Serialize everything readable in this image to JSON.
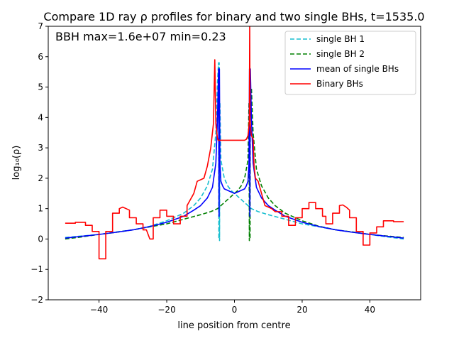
{
  "chart_data": {
    "type": "line",
    "title": "Compare 1D ray ρ profiles for binary and two single BHs, t=1535.0",
    "xlabel": "line position from centre",
    "ylabel": "log₁₀(ρ)",
    "xlim": [
      -55,
      55
    ],
    "ylim": [
      -2,
      7
    ],
    "xticks": [
      -40,
      -20,
      0,
      20,
      40
    ],
    "xtick_labels": [
      "−40",
      "−20",
      "0",
      "20",
      "40"
    ],
    "yticks": [
      -2,
      -1,
      0,
      1,
      2,
      3,
      4,
      5,
      6,
      7
    ],
    "ytick_labels": [
      "−2",
      "−1",
      "0",
      "1",
      "2",
      "3",
      "4",
      "5",
      "6",
      "7"
    ],
    "annotation": "BBH max=1.6e+07 min=0.23",
    "legend_position": "top-right",
    "grid": false,
    "series": [
      {
        "name": "single BH 1",
        "color": "#17becf",
        "style": "dashed",
        "x": [
          -50,
          -45,
          -40,
          -35,
          -30,
          -25,
          -20,
          -15,
          -12,
          -10,
          -8,
          -6.5,
          -5.5,
          -5.0,
          -4.7,
          -4.6,
          -4.5,
          -4.4,
          -4.3,
          -4.0,
          -3.5,
          -3.0,
          -2,
          -1,
          0,
          1,
          2,
          3,
          4,
          5,
          7,
          10,
          15,
          20,
          25,
          30,
          35,
          40,
          45,
          50
        ],
        "y": [
          0.05,
          0.1,
          0.15,
          0.23,
          0.3,
          0.42,
          0.6,
          0.85,
          1.1,
          1.35,
          1.75,
          2.3,
          3.5,
          5.2,
          5.8,
          0.0,
          5.8,
          -0.05,
          4.5,
          2.6,
          2.3,
          2.0,
          1.75,
          1.6,
          1.5,
          1.4,
          1.3,
          1.2,
          1.1,
          1.0,
          0.9,
          0.8,
          0.65,
          0.5,
          0.4,
          0.3,
          0.22,
          0.15,
          0.07,
          0.0
        ]
      },
      {
        "name": "single BH 2",
        "color": "#008000",
        "style": "dashed",
        "x": [
          -50,
          -45,
          -40,
          -35,
          -30,
          -25,
          -20,
          -15,
          -10,
          -7,
          -5,
          -4,
          -3,
          -2,
          -1,
          0,
          1,
          2,
          3,
          3.5,
          4.0,
          4.3,
          4.4,
          4.5,
          4.6,
          4.7,
          5.0,
          5.5,
          6.5,
          8,
          10,
          12,
          15,
          20,
          25,
          30,
          35,
          40,
          45,
          50
        ],
        "y": [
          0.0,
          0.07,
          0.15,
          0.22,
          0.3,
          0.4,
          0.5,
          0.65,
          0.8,
          0.9,
          1.0,
          1.1,
          1.2,
          1.3,
          1.4,
          1.5,
          1.6,
          1.75,
          2.0,
          2.3,
          2.6,
          4.5,
          -0.05,
          5.8,
          0.0,
          5.0,
          5.0,
          3.5,
          2.3,
          1.75,
          1.35,
          1.1,
          0.85,
          0.6,
          0.42,
          0.3,
          0.23,
          0.15,
          0.1,
          0.05
        ]
      },
      {
        "name": "mean of single BHs",
        "color": "#0000ff",
        "style": "solid",
        "x": [
          -50,
          -45,
          -40,
          -35,
          -30,
          -25,
          -20,
          -15,
          -12,
          -10,
          -8,
          -6.5,
          -5.5,
          -5.0,
          -4.7,
          -4.55,
          -4.45,
          -4.3,
          -4.0,
          -3.5,
          -3.0,
          -2,
          -1,
          0,
          1,
          2,
          3,
          3.5,
          4.0,
          4.3,
          4.45,
          4.55,
          4.7,
          5.0,
          5.5,
          6.5,
          8,
          10,
          12,
          15,
          20,
          25,
          30,
          35,
          40,
          45,
          50
        ],
        "y": [
          0.03,
          0.09,
          0.15,
          0.22,
          0.3,
          0.41,
          0.55,
          0.75,
          0.95,
          1.1,
          1.35,
          1.7,
          2.5,
          4.0,
          5.6,
          0.75,
          5.6,
          2.5,
          1.9,
          1.75,
          1.65,
          1.6,
          1.55,
          1.5,
          1.55,
          1.6,
          1.65,
          1.75,
          1.9,
          2.5,
          5.6,
          0.75,
          5.6,
          4.0,
          2.5,
          1.7,
          1.35,
          1.1,
          0.95,
          0.75,
          0.55,
          0.41,
          0.3,
          0.22,
          0.15,
          0.09,
          0.03
        ]
      },
      {
        "name": "Binary BHs",
        "color": "#ff0000",
        "style": "solid",
        "x": [
          -50,
          -47,
          -47,
          -44,
          -44,
          -42,
          -42,
          -40,
          -40,
          -38,
          -38,
          -36,
          -36,
          -34,
          -34,
          -33,
          -32,
          -31,
          -31,
          -29,
          -29,
          -27,
          -27,
          -26,
          -25,
          -24,
          -24,
          -22,
          -22,
          -20,
          -20,
          -18,
          -18,
          -16,
          -16,
          -14,
          -14,
          -12,
          -11,
          -9,
          -8,
          -7,
          -6.2,
          -5.8,
          -5.5,
          -5.0,
          -4.8,
          -4.6,
          -4.4,
          -4.2,
          -4.0,
          -3.5,
          -3,
          -2,
          -1,
          0,
          1,
          2,
          3,
          3.5,
          4.0,
          4.2,
          4.4,
          4.5,
          4.6,
          4.8,
          5.0,
          5.5,
          5.8,
          6.2,
          7,
          8,
          9,
          11,
          12,
          14,
          14,
          16,
          16,
          18,
          18,
          20,
          20,
          22,
          22,
          24,
          24,
          26,
          26,
          27,
          27,
          29,
          29,
          31,
          31,
          32,
          33,
          34,
          34,
          36,
          36,
          38,
          38,
          40,
          40,
          42,
          42,
          44,
          44,
          47,
          47,
          50
        ],
        "y": [
          0.52,
          0.52,
          0.55,
          0.55,
          0.45,
          0.45,
          0.25,
          0.25,
          -0.65,
          -0.65,
          0.25,
          0.25,
          0.85,
          0.85,
          1.0,
          1.05,
          1.0,
          0.95,
          0.7,
          0.7,
          0.5,
          0.5,
          0.3,
          0.3,
          0.0,
          0.0,
          0.7,
          0.7,
          0.95,
          0.95,
          0.75,
          0.75,
          0.5,
          0.5,
          0.75,
          0.75,
          1.1,
          1.5,
          1.9,
          2.0,
          2.4,
          3.0,
          3.8,
          5.9,
          3.8,
          3.3,
          3.25,
          3.25,
          3.25,
          3.25,
          3.25,
          3.25,
          3.25,
          3.25,
          3.25,
          3.25,
          3.25,
          3.25,
          3.25,
          3.28,
          3.4,
          3.6,
          3.9,
          7.2,
          3.9,
          3.6,
          3.4,
          3.3,
          2.4,
          2.0,
          1.9,
          1.5,
          1.1,
          1.0,
          0.9,
          0.9,
          0.75,
          0.75,
          0.45,
          0.45,
          0.7,
          0.7,
          1.0,
          1.0,
          1.2,
          1.2,
          1.0,
          1.0,
          0.75,
          0.75,
          0.5,
          0.5,
          0.85,
          0.85,
          1.1,
          1.12,
          1.05,
          0.95,
          0.7,
          0.7,
          0.25,
          0.25,
          -0.2,
          -0.2,
          0.2,
          0.2,
          0.4,
          0.4,
          0.6,
          0.6,
          0.57,
          0.57
        ]
      }
    ]
  }
}
